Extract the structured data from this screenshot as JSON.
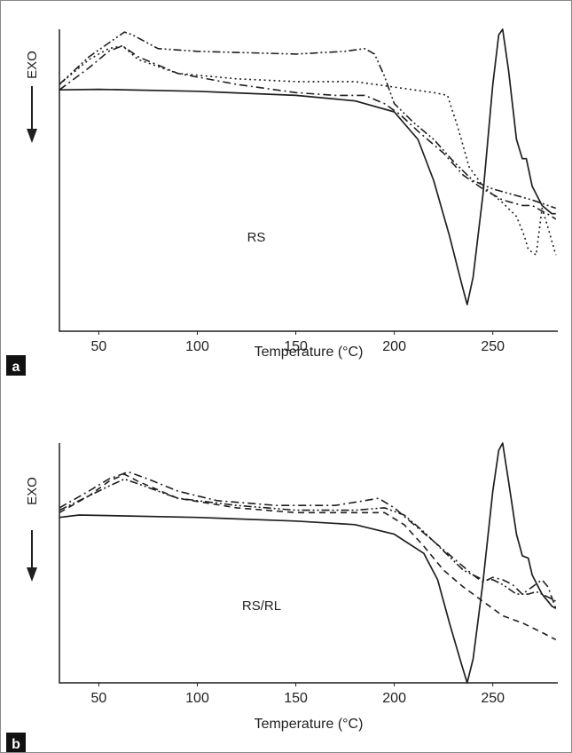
{
  "colors": {
    "line": "#1f1f1f",
    "badge": "#111111",
    "border": "#8a8a8a"
  },
  "chart_data": [
    {
      "type": "line",
      "panel_label": "a",
      "sample_label": "RS",
      "exo_label": "EXO",
      "xlabel": "Temperature (°C)",
      "ylabel": "",
      "xlim": [
        30,
        283
      ],
      "ylim": [
        0,
        100
      ],
      "xticks": [
        50,
        100,
        150,
        200,
        250
      ],
      "grid": false,
      "series": [
        {
          "style": "solid",
          "points": [
            [
              30,
              78
            ],
            [
              50,
              78.2
            ],
            [
              100,
              77.5
            ],
            [
              150,
              76
            ],
            [
              180,
              74
            ],
            [
              200,
              70
            ],
            [
              212,
              60
            ],
            [
              220,
              45
            ],
            [
              228,
              25
            ],
            [
              234,
              8
            ],
            [
              237,
              0
            ],
            [
              240,
              10
            ],
            [
              245,
              40
            ],
            [
              250,
              80
            ],
            [
              253,
              98
            ],
            [
              255,
              100
            ],
            [
              258,
              85
            ],
            [
              262,
              60
            ],
            [
              265,
              53
            ],
            [
              267,
              53
            ],
            [
              270,
              43
            ],
            [
              275,
              36
            ],
            [
              280,
              33
            ],
            [
              282,
              33
            ]
          ]
        },
        {
          "style": "dash-dot-dot",
          "points": [
            [
              30,
              80
            ],
            [
              45,
              90
            ],
            [
              55,
              95
            ],
            [
              63,
              99
            ],
            [
              67,
              98
            ],
            [
              80,
              93
            ],
            [
              100,
              92
            ],
            [
              150,
              91
            ],
            [
              175,
              92
            ],
            [
              185,
              93
            ],
            [
              190,
              91
            ],
            [
              195,
              83
            ],
            [
              200,
              73
            ],
            [
              210,
              66
            ],
            [
              220,
              60
            ],
            [
              230,
              52
            ],
            [
              240,
              45
            ],
            [
              250,
              42
            ],
            [
              260,
              40
            ],
            [
              270,
              38
            ],
            [
              282,
              35
            ]
          ]
        },
        {
          "style": "dotted",
          "points": [
            [
              30,
              80
            ],
            [
              45,
              89
            ],
            [
              55,
              93
            ],
            [
              62,
              94
            ],
            [
              70,
              89
            ],
            [
              90,
              84
            ],
            [
              120,
              82
            ],
            [
              150,
              81
            ],
            [
              180,
              81
            ],
            [
              200,
              79
            ],
            [
              220,
              77
            ],
            [
              227,
              76
            ],
            [
              232,
              65
            ],
            [
              238,
              50
            ],
            [
              245,
              43
            ],
            [
              255,
              37
            ],
            [
              262,
              32
            ],
            [
              266,
              25
            ],
            [
              268,
              20
            ],
            [
              272,
              18
            ],
            [
              275,
              35
            ],
            [
              278,
              28
            ],
            [
              282,
              18
            ]
          ]
        },
        {
          "style": "dash-dot",
          "points": [
            [
              30,
              78
            ],
            [
              45,
              86
            ],
            [
              55,
              92
            ],
            [
              62,
              94
            ],
            [
              70,
              90
            ],
            [
              90,
              84
            ],
            [
              120,
              80
            ],
            [
              150,
              77
            ],
            [
              170,
              76
            ],
            [
              185,
              76
            ],
            [
              195,
              73
            ],
            [
              203,
              69
            ],
            [
              212,
              63
            ],
            [
              225,
              55
            ],
            [
              235,
              47
            ],
            [
              245,
              42
            ],
            [
              255,
              38
            ],
            [
              265,
              36
            ],
            [
              270,
              36
            ],
            [
              275,
              34
            ],
            [
              280,
              32
            ],
            [
              282,
              31
            ]
          ]
        }
      ]
    },
    {
      "type": "line",
      "panel_label": "b",
      "sample_label": "RS/RL",
      "exo_label": "EXO",
      "xlabel": "Temperature (°C)",
      "ylabel": "",
      "xlim": [
        30,
        283
      ],
      "ylim": [
        0,
        100
      ],
      "xticks": [
        50,
        100,
        150,
        200,
        250
      ],
      "grid": false,
      "series": [
        {
          "style": "solid",
          "points": [
            [
              30,
              69
            ],
            [
              40,
              70
            ],
            [
              100,
              69
            ],
            [
              150,
              67.5
            ],
            [
              180,
              66
            ],
            [
              200,
              62
            ],
            [
              215,
              54
            ],
            [
              222,
              43
            ],
            [
              228,
              25
            ],
            [
              234,
              8
            ],
            [
              237,
              0
            ],
            [
              240,
              10
            ],
            [
              245,
              42
            ],
            [
              250,
              80
            ],
            [
              253,
              97
            ],
            [
              255,
              100
            ],
            [
              258,
              84
            ],
            [
              262,
              62
            ],
            [
              265,
              53
            ],
            [
              268,
              52
            ],
            [
              270,
              45
            ],
            [
              275,
              37
            ],
            [
              280,
              32
            ],
            [
              282,
              31
            ]
          ]
        },
        {
          "style": "dash-dot",
          "points": [
            [
              30,
              73
            ],
            [
              45,
              80
            ],
            [
              55,
              85
            ],
            [
              65,
              88
            ],
            [
              75,
              85
            ],
            [
              90,
              80
            ],
            [
              110,
              76
            ],
            [
              140,
              74
            ],
            [
              170,
              74
            ],
            [
              185,
              76
            ],
            [
              192,
              77
            ],
            [
              200,
              73
            ],
            [
              210,
              66
            ],
            [
              220,
              59
            ],
            [
              230,
              52
            ],
            [
              240,
              45
            ],
            [
              245,
              42
            ],
            [
              250,
              44
            ],
            [
              255,
              43
            ],
            [
              260,
              41
            ],
            [
              265,
              37
            ],
            [
              270,
              40
            ],
            [
              275,
              43
            ],
            [
              278,
              40
            ],
            [
              282,
              31
            ]
          ]
        },
        {
          "style": "dash-dot-dot",
          "points": [
            [
              30,
              72
            ],
            [
              45,
              78
            ],
            [
              55,
              82
            ],
            [
              63,
              85
            ],
            [
              70,
              83
            ],
            [
              90,
              77
            ],
            [
              120,
              74
            ],
            [
              150,
              72
            ],
            [
              180,
              72
            ],
            [
              195,
              73
            ],
            [
              205,
              70
            ],
            [
              215,
              63
            ],
            [
              225,
              55
            ],
            [
              235,
              47
            ],
            [
              245,
              43
            ],
            [
              250,
              43
            ],
            [
              255,
              41
            ],
            [
              262,
              37
            ],
            [
              268,
              37
            ],
            [
              272,
              38
            ],
            [
              275,
              37
            ],
            [
              280,
              35
            ],
            [
              282,
              34
            ]
          ]
        },
        {
          "style": "dashed",
          "points": [
            [
              30,
              71
            ],
            [
              45,
              78
            ],
            [
              55,
              84
            ],
            [
              63,
              87
            ],
            [
              70,
              84
            ],
            [
              90,
              77
            ],
            [
              120,
              73
            ],
            [
              150,
              71
            ],
            [
              180,
              71
            ],
            [
              195,
              71
            ],
            [
              205,
              66
            ],
            [
              215,
              57
            ],
            [
              225,
              47
            ],
            [
              235,
              40
            ],
            [
              245,
              34
            ],
            [
              255,
              28
            ],
            [
              265,
              25
            ],
            [
              275,
              21
            ],
            [
              282,
              18
            ]
          ]
        }
      ]
    }
  ]
}
